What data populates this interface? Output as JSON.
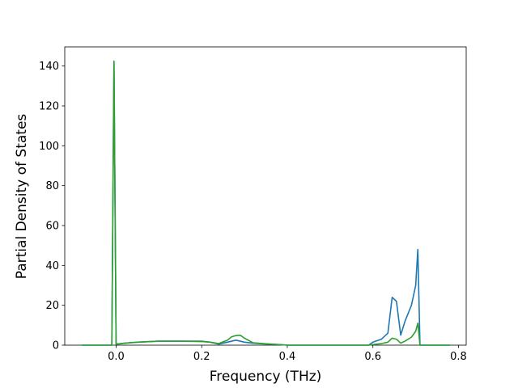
{
  "chart_data": {
    "type": "line",
    "xlabel": "Frequency (THz)",
    "ylabel": "Partial Density of States",
    "x": [
      -0.08,
      -0.01,
      -0.005,
      0.0,
      0.02,
      0.05,
      0.1,
      0.15,
      0.2,
      0.22,
      0.24,
      0.26,
      0.27,
      0.28,
      0.29,
      0.3,
      0.32,
      0.35,
      0.38,
      0.4,
      0.5,
      0.59,
      0.6,
      0.62,
      0.635,
      0.645,
      0.655,
      0.665,
      0.675,
      0.69,
      0.7,
      0.705,
      0.71,
      0.78
    ],
    "series": [
      {
        "color": "#1f77b4",
        "values": [
          0,
          0,
          142,
          0.5,
          1,
          1.5,
          2,
          2,
          2,
          1.5,
          0.5,
          1.5,
          2,
          2.5,
          2,
          1.5,
          1,
          0.6,
          0.3,
          0,
          0,
          0,
          1.5,
          3,
          6,
          24,
          22,
          5,
          12,
          20,
          30,
          48,
          0,
          0
        ]
      },
      {
        "color": "#2ca02c",
        "values": [
          0,
          0,
          142.5,
          0.5,
          1,
          1.5,
          2,
          2,
          1.8,
          1.5,
          0.8,
          2.5,
          4.2,
          4.8,
          5,
          3.5,
          1.2,
          0.7,
          0.3,
          0,
          0,
          0,
          0.3,
          0.8,
          1.5,
          3.5,
          3,
          1,
          2,
          4,
          7,
          11,
          0,
          0
        ]
      }
    ],
    "xlim": [
      -0.12,
      0.818
    ],
    "ylim": [
      0,
      149.6
    ],
    "xticks": [
      {
        "value": 0,
        "label": "0.0"
      },
      {
        "value": 0.2,
        "label": "0.2"
      },
      {
        "value": 0.4,
        "label": "0.4"
      },
      {
        "value": 0.6,
        "label": "0.6"
      },
      {
        "value": 0.8,
        "label": "0.8"
      }
    ],
    "yticks": [
      0,
      20,
      40,
      60,
      80,
      100,
      120,
      140
    ],
    "grid": false
  }
}
